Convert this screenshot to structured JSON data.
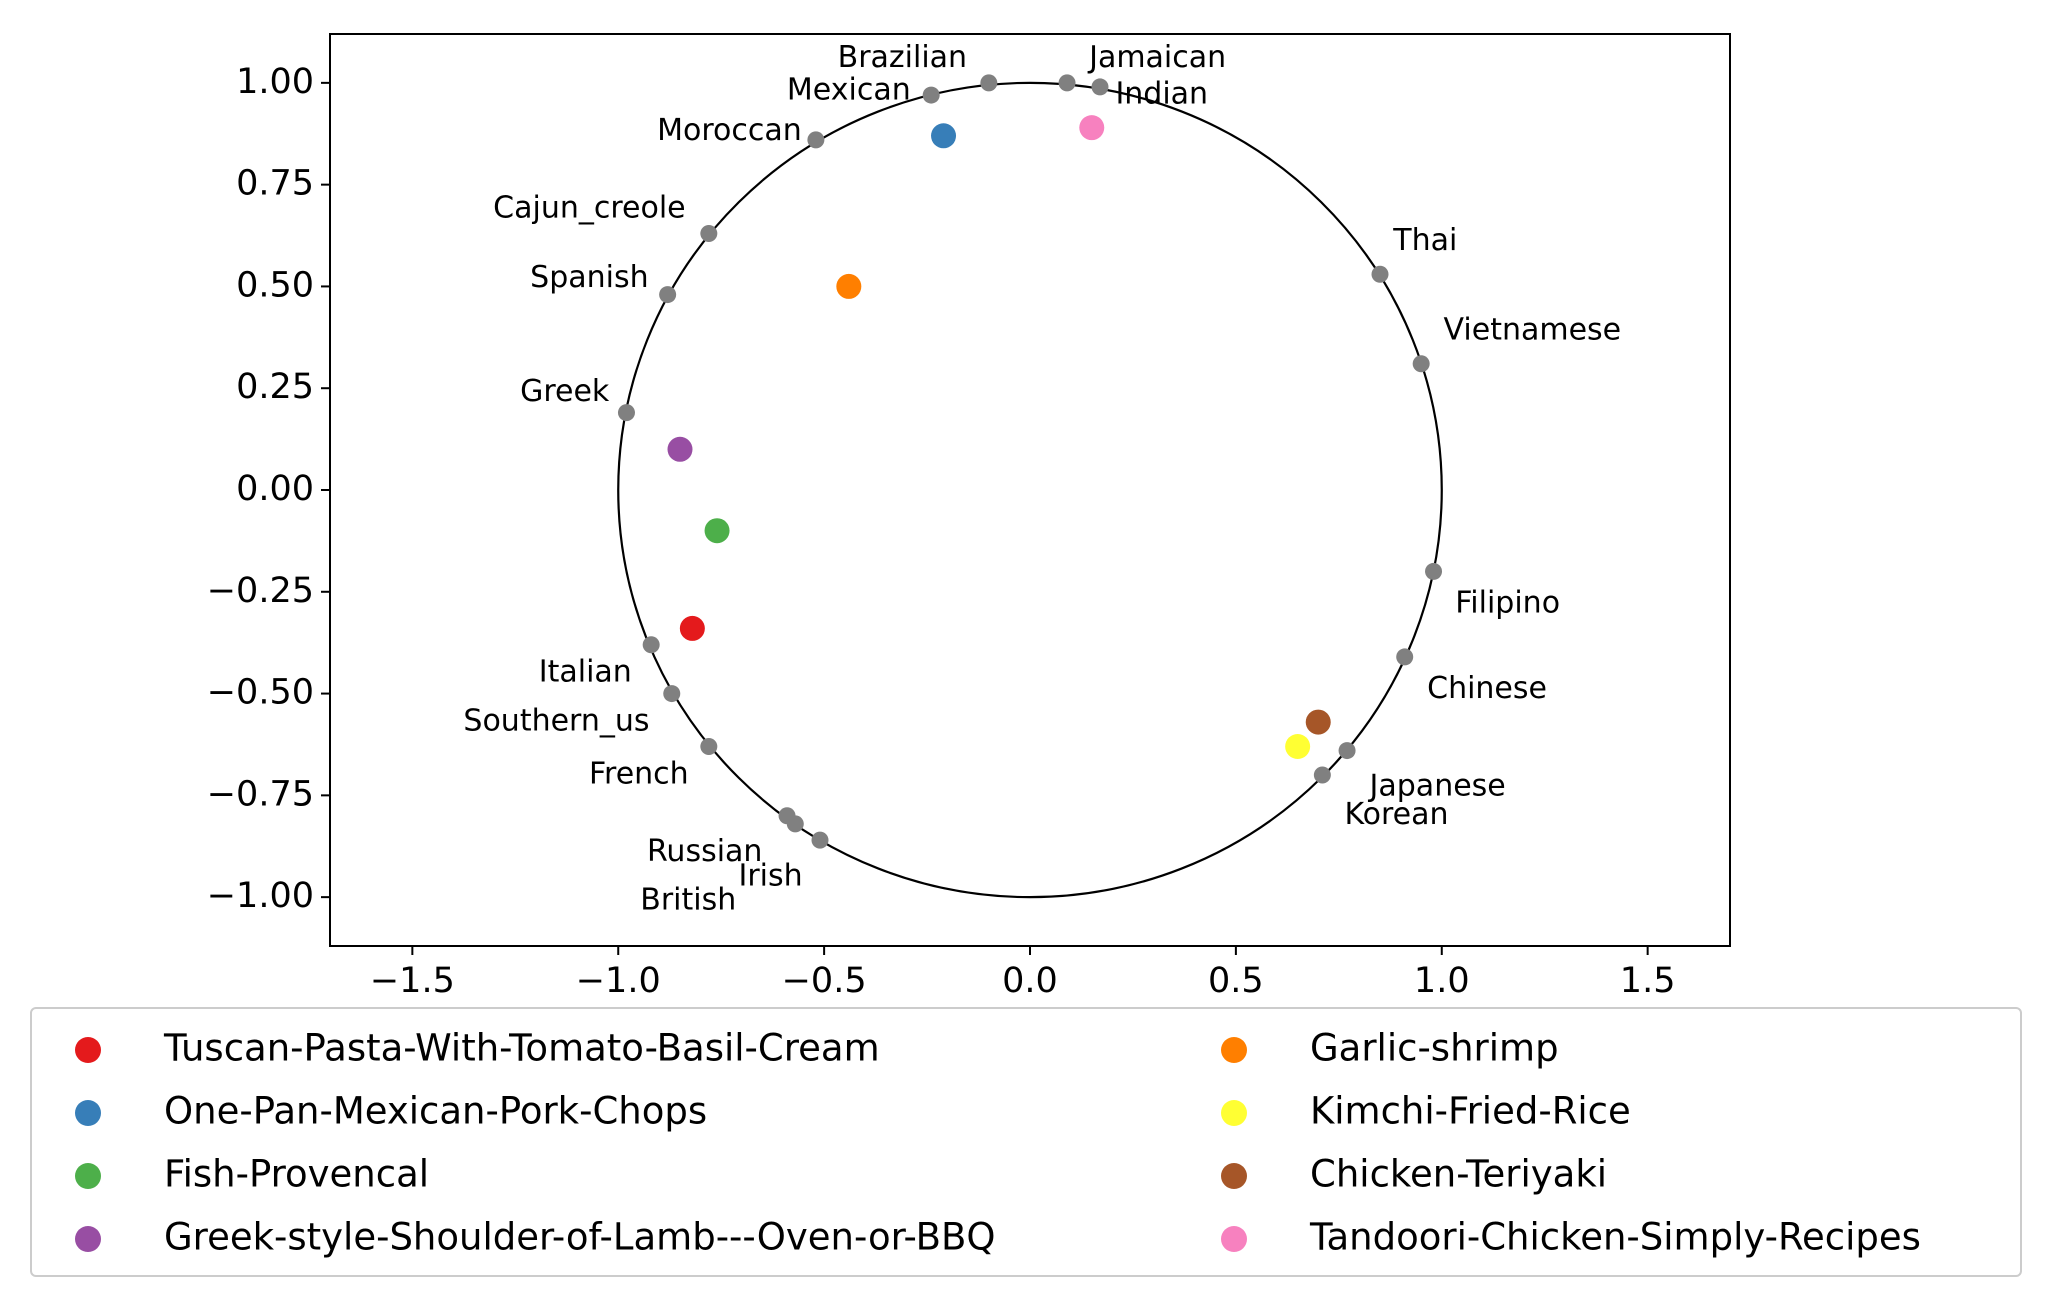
{
  "chart_data": {
    "type": "scatter",
    "xlim": [
      -1.7,
      1.7
    ],
    "ylim": [
      -1.12,
      1.12
    ],
    "x_ticks": [
      {
        "value": -1.5,
        "label": "−1.5"
      },
      {
        "value": -1.0,
        "label": "−1.0"
      },
      {
        "value": -0.5,
        "label": "−0.5"
      },
      {
        "value": 0.0,
        "label": "0.0"
      },
      {
        "value": 0.5,
        "label": "0.5"
      },
      {
        "value": 1.0,
        "label": "1.0"
      },
      {
        "value": 1.5,
        "label": "1.5"
      }
    ],
    "y_ticks": [
      {
        "value": 1.0,
        "label": "1.00"
      },
      {
        "value": 0.75,
        "label": "0.75"
      },
      {
        "value": 0.5,
        "label": "0.50"
      },
      {
        "value": 0.25,
        "label": "0.25"
      },
      {
        "value": 0.0,
        "label": "0.00"
      },
      {
        "value": -0.25,
        "label": "−0.25"
      },
      {
        "value": -0.5,
        "label": "−0.50"
      },
      {
        "value": -0.75,
        "label": "−0.75"
      },
      {
        "value": -1.0,
        "label": "−1.00"
      }
    ],
    "grid": false,
    "unit_circle": true,
    "legend_position": "bottom",
    "cuisine_color": "#808080",
    "cuisines": [
      {
        "name": "Brazilian",
        "x": -0.24,
        "y": 0.97,
        "label_x": -0.31,
        "label_y": 1.06
      },
      {
        "name": "Jamaican",
        "x": 0.09,
        "y": 1.0,
        "label_x": 0.31,
        "label_y": 1.06
      },
      {
        "name": "Mexican",
        "x": -0.1,
        "y": 1.0,
        "label_x": -0.44,
        "label_y": 0.98
      },
      {
        "name": "Indian",
        "x": 0.17,
        "y": 0.99,
        "label_x": 0.32,
        "label_y": 0.97
      },
      {
        "name": "Moroccan",
        "x": -0.52,
        "y": 0.86,
        "label_x": -0.73,
        "label_y": 0.88
      },
      {
        "name": "Cajun_creole",
        "x": -0.78,
        "y": 0.63,
        "label_x": -1.07,
        "label_y": 0.69
      },
      {
        "name": "Spanish",
        "x": -0.88,
        "y": 0.48,
        "label_x": -1.07,
        "label_y": 0.52
      },
      {
        "name": "Greek",
        "x": -0.98,
        "y": 0.19,
        "label_x": -1.13,
        "label_y": 0.24
      },
      {
        "name": "Thai",
        "x": 0.85,
        "y": 0.53,
        "label_x": 0.96,
        "label_y": 0.61
      },
      {
        "name": "Vietnamese",
        "x": 0.95,
        "y": 0.31,
        "label_x": 1.22,
        "label_y": 0.39
      },
      {
        "name": "Filipino",
        "x": 0.98,
        "y": -0.2,
        "label_x": 1.16,
        "label_y": -0.28
      },
      {
        "name": "Chinese",
        "x": 0.91,
        "y": -0.41,
        "label_x": 1.11,
        "label_y": -0.49
      },
      {
        "name": "Japanese",
        "x": 0.77,
        "y": -0.64,
        "label_x": 0.99,
        "label_y": -0.73
      },
      {
        "name": "Korean",
        "x": 0.71,
        "y": -0.7,
        "label_x": 0.89,
        "label_y": -0.8
      },
      {
        "name": "Italian",
        "x": -0.92,
        "y": -0.38,
        "label_x": -1.08,
        "label_y": -0.45
      },
      {
        "name": "Southern_us",
        "x": -0.87,
        "y": -0.5,
        "label_x": -1.15,
        "label_y": -0.57
      },
      {
        "name": "French",
        "x": -0.78,
        "y": -0.63,
        "label_x": -0.95,
        "label_y": -0.7
      },
      {
        "name": "Russian",
        "x": -0.59,
        "y": -0.8,
        "label_x": -0.79,
        "label_y": -0.89
      },
      {
        "name": "Irish",
        "x": -0.57,
        "y": -0.82,
        "label_x": -0.63,
        "label_y": -0.95
      },
      {
        "name": "British",
        "x": -0.51,
        "y": -0.86,
        "label_x": -0.83,
        "label_y": -1.01
      }
    ],
    "series": [
      {
        "name": "Tuscan-Pasta-With-Tomato-Basil-Cream",
        "color": "#e41a1c",
        "x": -0.82,
        "y": -0.34
      },
      {
        "name": "One-Pan-Mexican-Pork-Chops",
        "color": "#377eb8",
        "x": -0.21,
        "y": 0.87
      },
      {
        "name": "Fish-Provencal",
        "color": "#4daf4a",
        "x": -0.76,
        "y": -0.1
      },
      {
        "name": "Greek-style-Shoulder-of-Lamb---Oven-or-BBQ",
        "color": "#984ea3",
        "x": -0.85,
        "y": 0.1
      },
      {
        "name": "Garlic-shrimp",
        "color": "#ff7f00",
        "x": -0.44,
        "y": 0.5
      },
      {
        "name": "Kimchi-Fried-Rice",
        "color": "#ffff33",
        "x": 0.65,
        "y": -0.63
      },
      {
        "name": "Chicken-Teriyaki",
        "color": "#a65628",
        "x": 0.7,
        "y": -0.57
      },
      {
        "name": "Tandoori-Chicken-Simply-Recipes",
        "color": "#f781bf",
        "x": 0.15,
        "y": 0.89
      }
    ]
  }
}
